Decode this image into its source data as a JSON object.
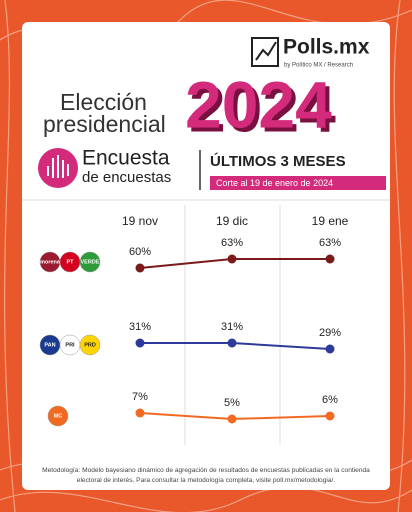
{
  "header": {
    "brand": "Polls.mx",
    "brand_sub": "by Político MX / Research",
    "title_line1": "Elección",
    "title_line2": "presidencial",
    "year": "2024",
    "survey_line1": "Encuesta",
    "survey_line2": "de encuestas",
    "period": "ÚLTIMOS 3 MESES",
    "cutoff": "Corte al 19 de enero de 2024"
  },
  "chart_data": {
    "type": "line",
    "categories": [
      "19 nov",
      "19 dic",
      "19 ene"
    ],
    "series": [
      {
        "logos": [
          "morena",
          "PT",
          "VERDE"
        ],
        "color": "#7a1a1a",
        "values": [
          60,
          63,
          63
        ],
        "value_labels": [
          "60%",
          "63%",
          "63%"
        ]
      },
      {
        "logos": [
          "PAN",
          "PRI",
          "PRD"
        ],
        "color": "#2d3a9a",
        "values": [
          31,
          31,
          29
        ],
        "value_labels": [
          "31%",
          "31%",
          "29%"
        ]
      },
      {
        "logos": [
          "MC"
        ],
        "color": "#f26a21",
        "values": [
          7,
          5,
          6
        ],
        "value_labels": [
          "7%",
          "5%",
          "6%"
        ]
      }
    ]
  },
  "footer": "Metodología: Modelo bayesiano dinámico de agregación de resultados de encuestas publicadas en la contienda electoral de interés. Para consultar la metodología completa, visite poll.mx/metodologia/."
}
